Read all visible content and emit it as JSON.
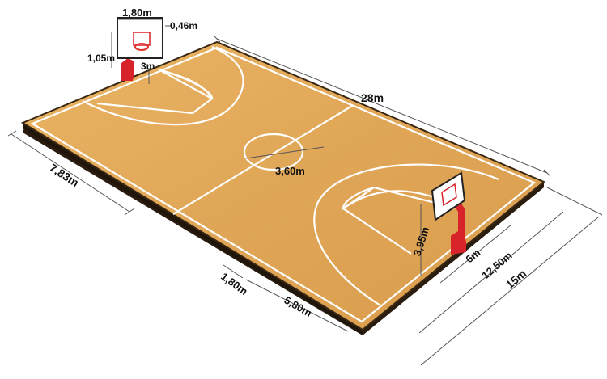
{
  "colors": {
    "court_wood": "#e2a85a",
    "court_wood_dark": "#c98c3c",
    "court_edge": "#2a1d10",
    "court_lines": "#ffffff",
    "dimension_lines": "#555555",
    "post_red": "#d8232a",
    "backboard": "#ffffff",
    "rim": "#e0322a"
  },
  "icons": [
    "basketball-hoop-icon"
  ],
  "dimensions": {
    "court_length": "28m",
    "court_width": "15m",
    "sideline_to_three_point": "7,83m",
    "center_circle": "3,60m",
    "backboard_width": "1,80m",
    "backboard_height": "1,05m",
    "square_height": "0,46m",
    "lane_offset": "3m",
    "rim_height": "3,95m",
    "free_throw_width": "6m",
    "three_point_width": "12,50m",
    "baseline_offset": "1,80m",
    "lane_length": "5,80m"
  }
}
